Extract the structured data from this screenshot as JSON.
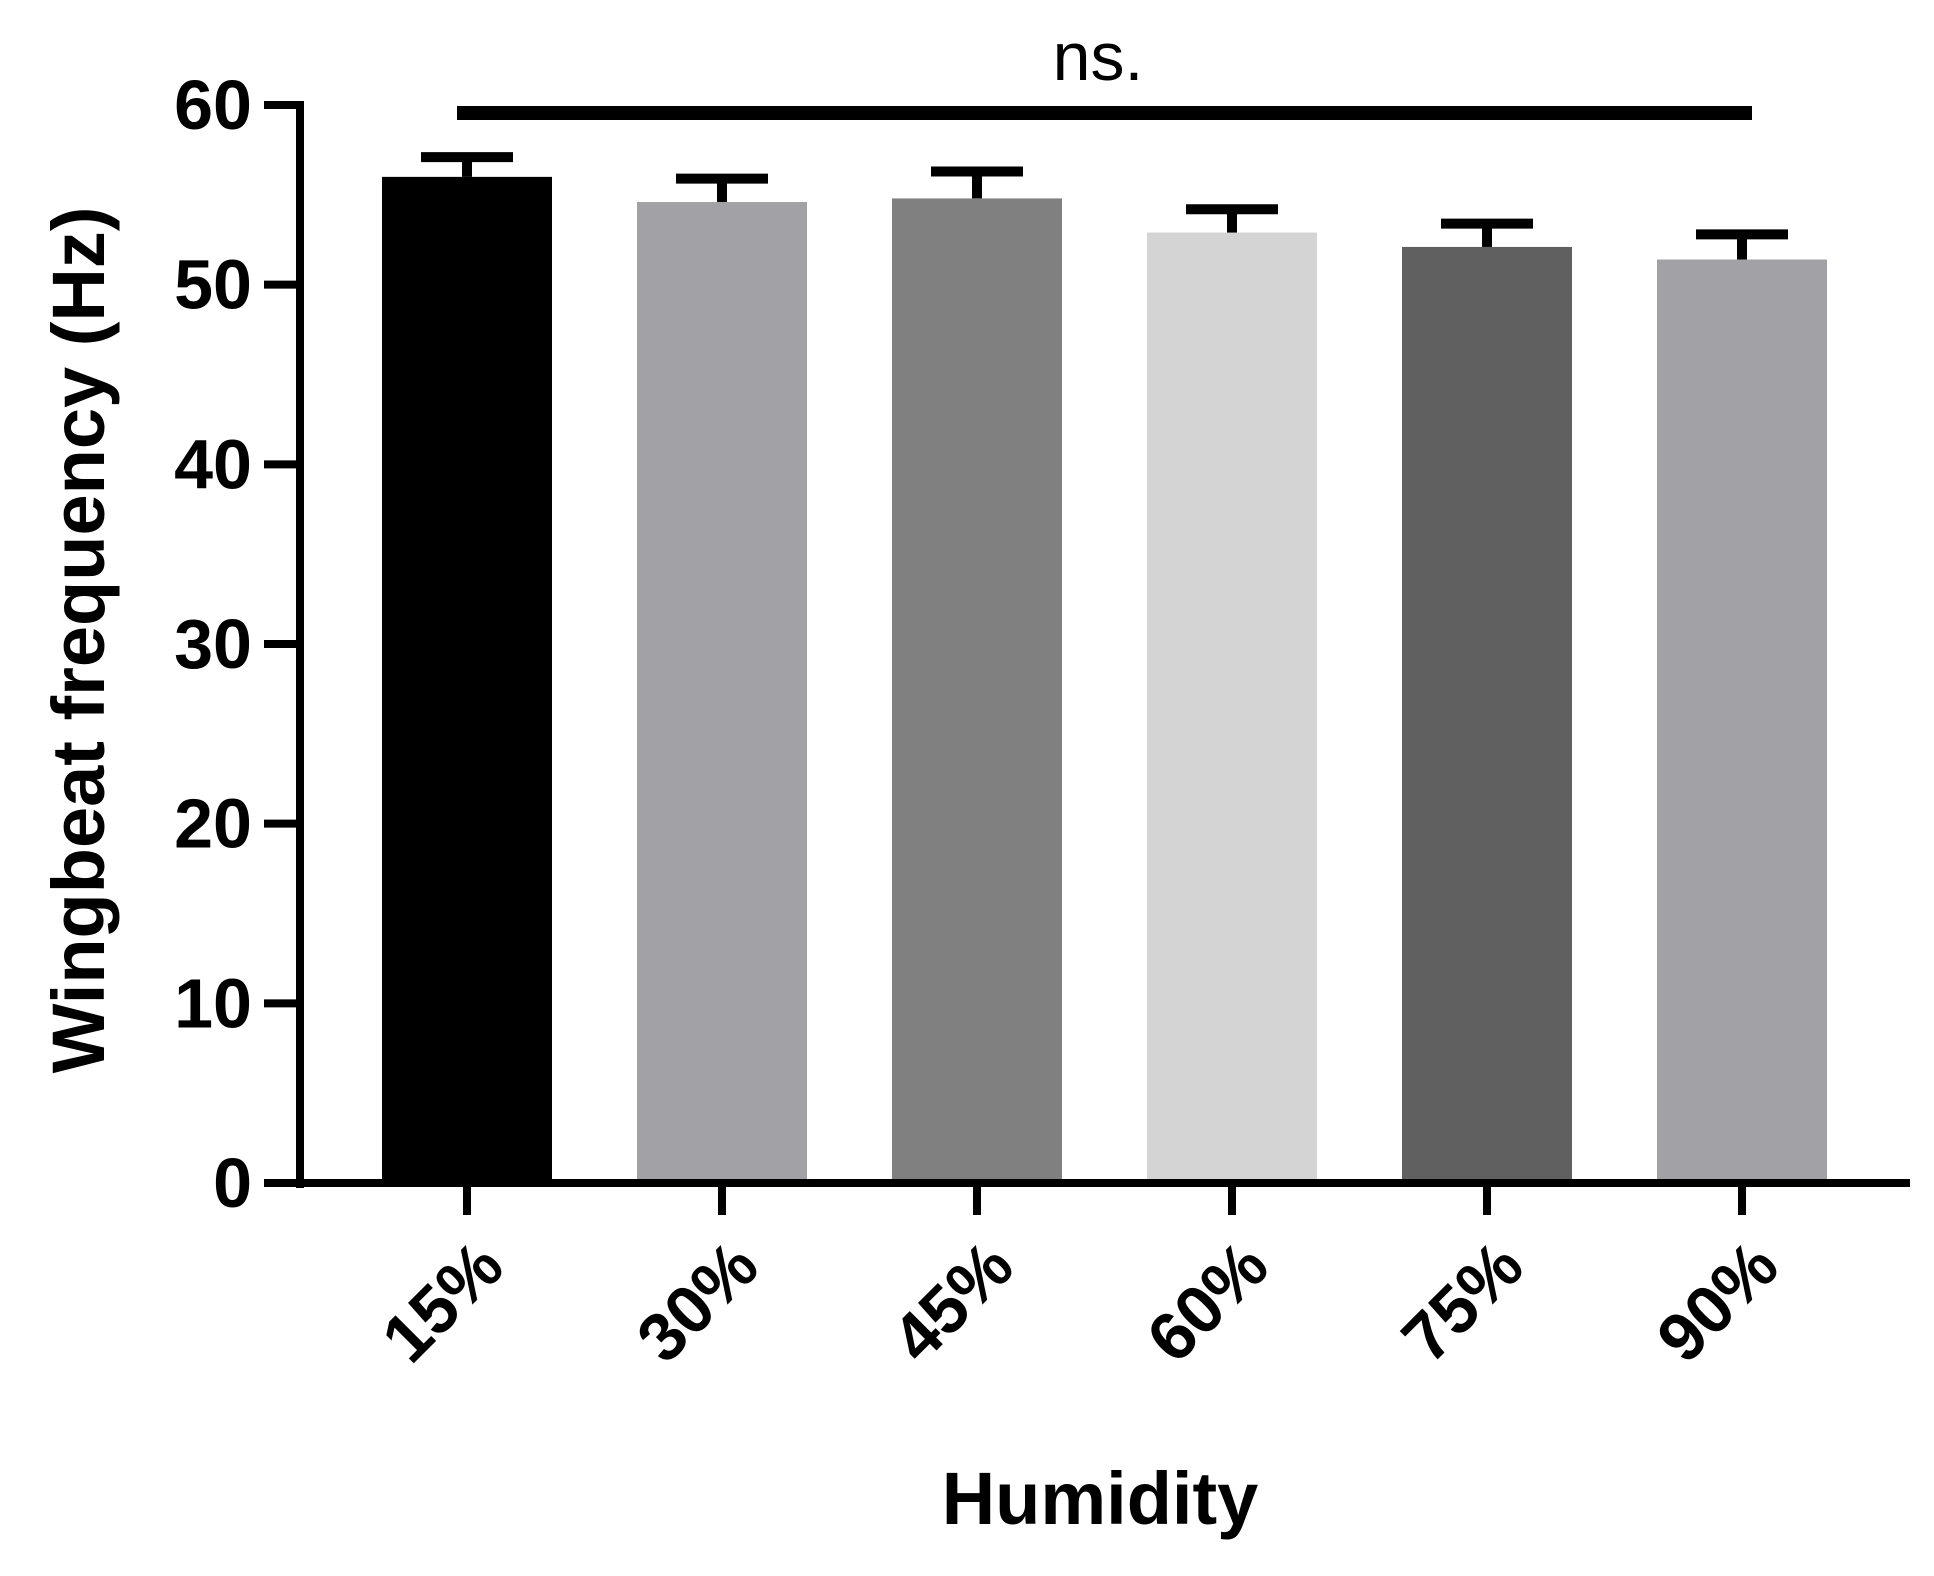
{
  "chart_data": {
    "type": "bar",
    "title": "",
    "xlabel": "Humidity",
    "ylabel": "Wingbeat frequency (Hz)",
    "ylim": [
      0,
      60
    ],
    "yticks": [
      0,
      10,
      20,
      30,
      40,
      50,
      60
    ],
    "categories": [
      "15%",
      "30%",
      "45%",
      "60%",
      "75%",
      "90%"
    ],
    "values": [
      56.0,
      54.6,
      54.8,
      52.9,
      52.1,
      51.4
    ],
    "error_upper": [
      1.1,
      1.3,
      1.5,
      1.3,
      1.3,
      1.4
    ],
    "bar_colors": [
      "#000000",
      "#a2a2a6",
      "#808080",
      "#d4d4d4",
      "#606060",
      "#a2a2a6"
    ],
    "significance": {
      "label": "ns.",
      "from": "15%",
      "to": "90%"
    },
    "grid": false,
    "legend": "none"
  }
}
